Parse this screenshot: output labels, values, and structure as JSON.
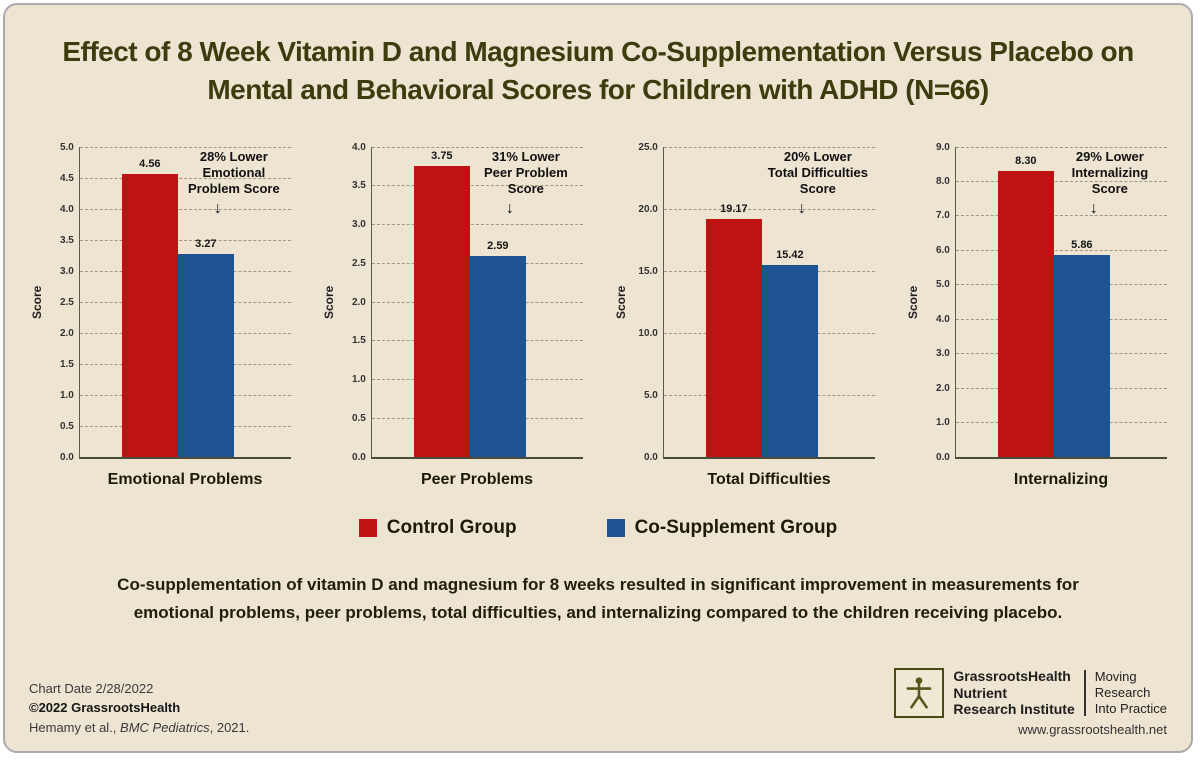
{
  "title": {
    "line1": "Effect of 8 Week Vitamin D and Magnesium Co-Supplementation Versus Placebo on",
    "line2": "Mental and Behavioral Scores for Children with ADHD (N=66)"
  },
  "colors": {
    "control": "#BE1313",
    "cosupplement": "#1F5394",
    "background": "#EDE4D2",
    "title_text": "#3C3C0E"
  },
  "legend": {
    "control_label": "Control Group",
    "cosupplement_label": "Co-Supplement Group"
  },
  "caption": {
    "line1": "Co-supplementation of vitamin D and magnesium for 8 weeks resulted in significant improvement in measurements for",
    "line2": "emotional problems, peer problems, total difficulties, and internalizing compared to the children receiving placebo."
  },
  "footer": {
    "chart_date": "Chart Date 2/28/2022",
    "copyright": "©2022 GrassrootsHealth",
    "citation_prefix": "Hemamy et al., ",
    "citation_journal": "BMC Pediatrics",
    "citation_suffix": ", 2021.",
    "org_line1": "GrassrootsHealth",
    "org_line2": "Nutrient",
    "org_line3": "Research Institute",
    "tagline_line1": "Moving",
    "tagline_line2": "Research",
    "tagline_line3": "Into Practice",
    "website": "www.grassrootshealth.net"
  },
  "chart_data": {
    "type": "bar",
    "ylabel": "Score",
    "series_names": [
      "Control Group",
      "Co-Supplement Group"
    ],
    "grid": "dashed horizontal",
    "legend_position": "bottom center",
    "charts": [
      {
        "category": "Emotional Problems",
        "ymax": 5.0,
        "ystep": 0.5,
        "ylim": [
          0,
          5.0
        ],
        "values": [
          4.56,
          3.27
        ],
        "labels": [
          "4.56",
          "3.27"
        ],
        "annotation": [
          "28% Lower",
          "Emotional",
          "Problem Score"
        ]
      },
      {
        "category": "Peer Problems",
        "ymax": 4.0,
        "ystep": 0.5,
        "ylim": [
          0,
          4.0
        ],
        "values": [
          3.75,
          2.59
        ],
        "labels": [
          "3.75",
          "2.59"
        ],
        "annotation": [
          "31% Lower",
          "Peer Problem",
          "Score"
        ]
      },
      {
        "category": "Total Difficulties",
        "ymax": 25.0,
        "ystep": 5.0,
        "ylim": [
          0,
          25.0
        ],
        "values": [
          19.17,
          15.42
        ],
        "labels": [
          "19.17",
          "15.42"
        ],
        "annotation": [
          "20% Lower",
          "Total Difficulties",
          "Score"
        ]
      },
      {
        "category": "Internalizing",
        "ymax": 9.0,
        "ystep": 1.0,
        "ylim": [
          0,
          9.0
        ],
        "values": [
          8.3,
          5.86
        ],
        "labels": [
          "8.30",
          "5.86"
        ],
        "annotation": [
          "29% Lower",
          "Internalizing",
          "Score"
        ]
      }
    ]
  }
}
